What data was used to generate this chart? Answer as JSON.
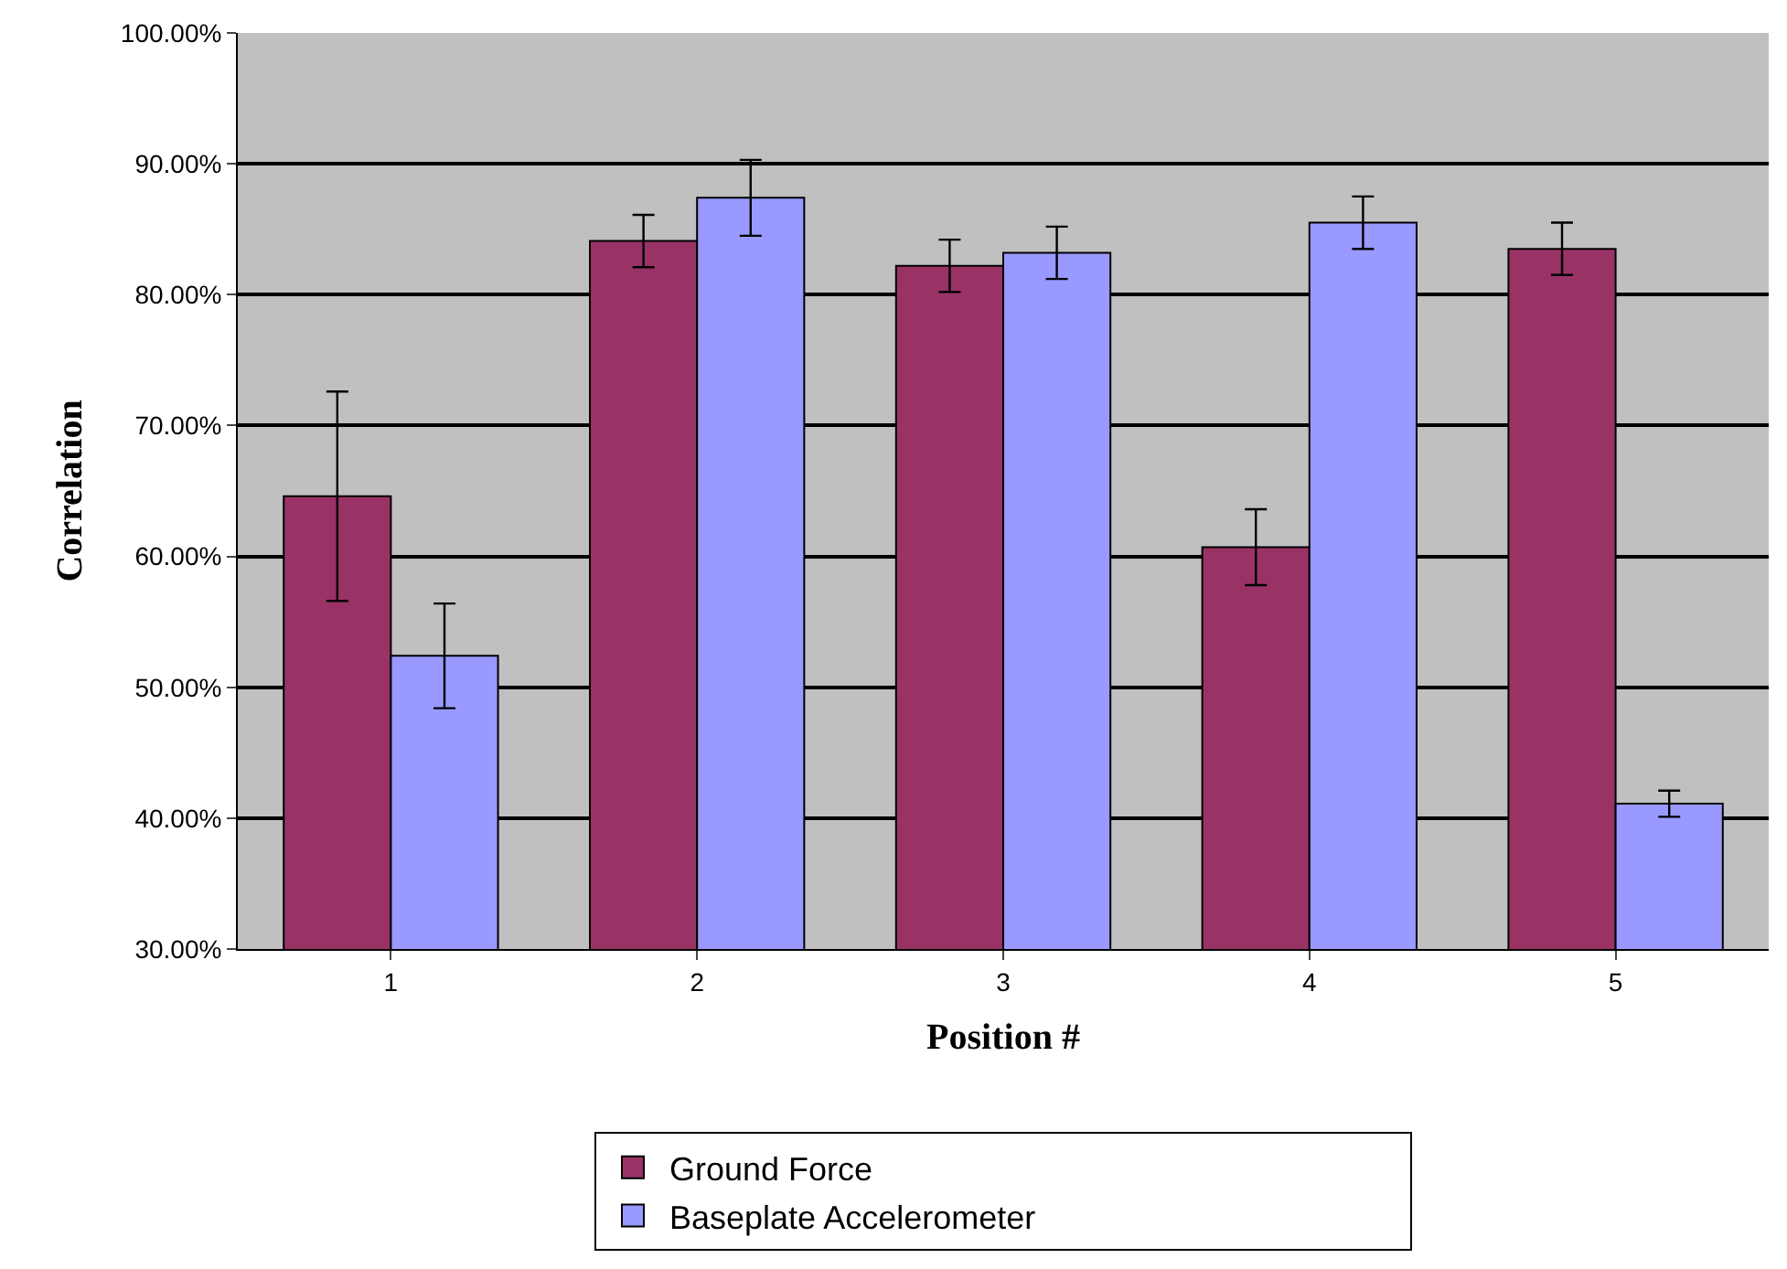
{
  "chart_data": {
    "type": "bar",
    "xlabel": "Position #",
    "ylabel": "Correlation",
    "categories": [
      "1",
      "2",
      "3",
      "4",
      "5"
    ],
    "series": [
      {
        "name": "Ground Force",
        "color": "#993366",
        "values": [
          64.6,
          84.1,
          82.2,
          60.7,
          83.5
        ],
        "errors": [
          8.0,
          2.0,
          2.0,
          2.9,
          2.0
        ]
      },
      {
        "name": "Baseplate Accelerometer",
        "color": "#9999ff",
        "values": [
          52.4,
          87.4,
          83.2,
          85.5,
          41.1
        ],
        "errors": [
          4.0,
          2.9,
          2.0,
          2.0,
          1.0
        ]
      }
    ],
    "ylim": [
      30,
      100
    ],
    "yticks": [
      {
        "value": 30,
        "label": "30.00%"
      },
      {
        "value": 40,
        "label": "40.00%"
      },
      {
        "value": 50,
        "label": "50.00%"
      },
      {
        "value": 60,
        "label": "60.00%"
      },
      {
        "value": 70,
        "label": "70.00%"
      },
      {
        "value": 80,
        "label": "80.00%"
      },
      {
        "value": 90,
        "label": "90.00%"
      },
      {
        "value": 100,
        "label": "100.00%"
      }
    ],
    "grid": "y",
    "legend": "bottom"
  }
}
